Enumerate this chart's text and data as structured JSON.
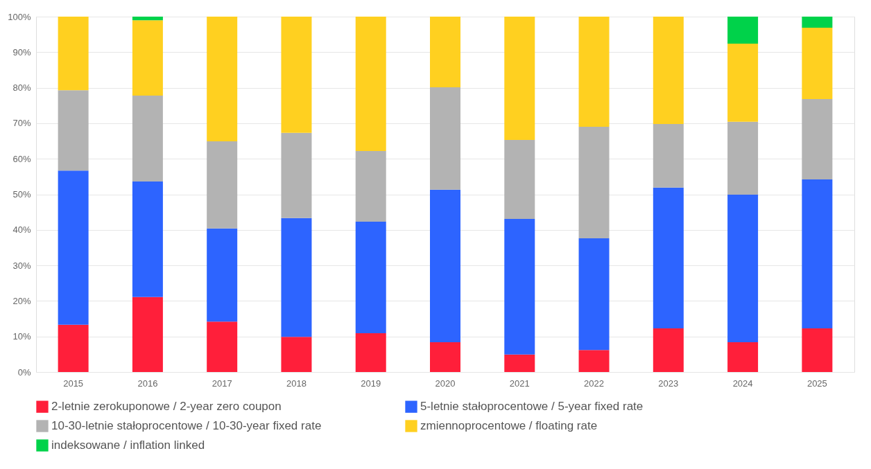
{
  "chart_data": {
    "type": "bar",
    "stacked": true,
    "categories": [
      "2015",
      "2016",
      "2017",
      "2018",
      "2019",
      "2020",
      "2021",
      "2022",
      "2023",
      "2024",
      "2025"
    ],
    "series": [
      {
        "name": "2-letnie zerokuponowe / 2-year zero coupon",
        "color": "#ff1f3a",
        "values": [
          13.3,
          21.1,
          14.2,
          9.9,
          10.9,
          8.4,
          4.9,
          6.2,
          12.3,
          8.4,
          12.3
        ]
      },
      {
        "name": "5-letnie stałoprocentowe / 5-year fixed rate",
        "color": "#2d64ff",
        "values": [
          43.4,
          32.5,
          26.2,
          33.4,
          31.4,
          42.9,
          38.2,
          31.4,
          39.6,
          41.5,
          41.9
        ]
      },
      {
        "name": "10-30-letnie stałoprocentowe / 10-30-year fixed rate",
        "color": "#b3b3b3",
        "values": [
          22.6,
          24.2,
          24.5,
          24.0,
          19.9,
          28.8,
          22.2,
          31.4,
          17.9,
          20.5,
          22.6
        ]
      },
      {
        "name": "zmiennoprocentowe / floating rate",
        "color": "#ffd020",
        "values": [
          20.7,
          21.2,
          35.1,
          32.7,
          37.8,
          19.9,
          34.7,
          31.0,
          30.2,
          22.0,
          20.1
        ]
      },
      {
        "name": "indeksowane / inflation linked",
        "color": "#00d24a",
        "values": [
          null,
          1.0,
          null,
          null,
          null,
          null,
          null,
          null,
          null,
          7.6,
          3.1
        ]
      }
    ],
    "ylim": [
      0,
      100
    ],
    "yticks": [
      {
        "value": 0,
        "label": "0%"
      },
      {
        "value": 10,
        "label": "10%"
      },
      {
        "value": 20,
        "label": "20%"
      },
      {
        "value": 30,
        "label": "30%"
      },
      {
        "value": 40,
        "label": "40%"
      },
      {
        "value": 50,
        "label": "50%"
      },
      {
        "value": 60,
        "label": "60%"
      },
      {
        "value": 70,
        "label": "70%"
      },
      {
        "value": 80,
        "label": "80%"
      },
      {
        "value": 90,
        "label": "90%"
      },
      {
        "value": 100,
        "label": "100%"
      }
    ],
    "grid": "y",
    "legend": "bottom"
  }
}
